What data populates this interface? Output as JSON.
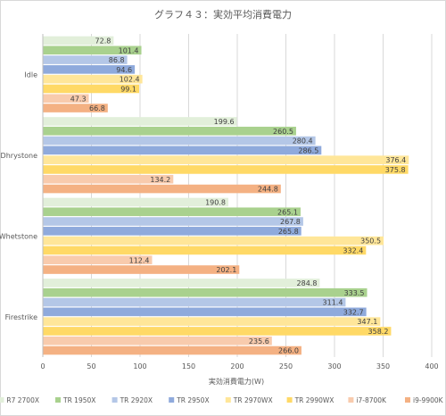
{
  "chart_data": {
    "type": "bar",
    "orientation": "horizontal",
    "title": "グラフ４３：実効平均消費電力",
    "xlabel": "実効消費電力(W)",
    "ylabel": "",
    "xlim": [
      0,
      400
    ],
    "xticks": [
      0,
      50,
      100,
      150,
      200,
      250,
      300,
      350,
      400
    ],
    "grid": true,
    "legend_position": "bottom",
    "categories": [
      "Idle",
      "Dhrystone",
      "Whetstone",
      "Firestrike"
    ],
    "series": [
      {
        "name": "R7 2700X",
        "color": "#e2efda",
        "values": [
          72.8,
          199.6,
          190.8,
          284.8
        ]
      },
      {
        "name": "TR 1950X",
        "color": "#a9d18e",
        "values": [
          101.4,
          260.5,
          265.1,
          333.5
        ]
      },
      {
        "name": "TR 2920X",
        "color": "#b4c7e7",
        "values": [
          86.8,
          280.4,
          267.8,
          311.4
        ]
      },
      {
        "name": "TR 2950X",
        "color": "#8faadc",
        "values": [
          94.6,
          286.5,
          265.8,
          332.7
        ]
      },
      {
        "name": "TR 2970WX",
        "color": "#ffe699",
        "values": [
          102.4,
          376.4,
          350.5,
          347.1
        ]
      },
      {
        "name": "TR 2990WX",
        "color": "#ffd966",
        "values": [
          99.1,
          375.8,
          332.4,
          358.2
        ]
      },
      {
        "name": "i7-8700K",
        "color": "#f8cbad",
        "values": [
          47.3,
          134.2,
          112.4,
          235.6
        ]
      },
      {
        "name": "i9-9900K",
        "color": "#f4b183",
        "values": [
          66.8,
          244.8,
          202.1,
          266.0
        ]
      }
    ]
  }
}
